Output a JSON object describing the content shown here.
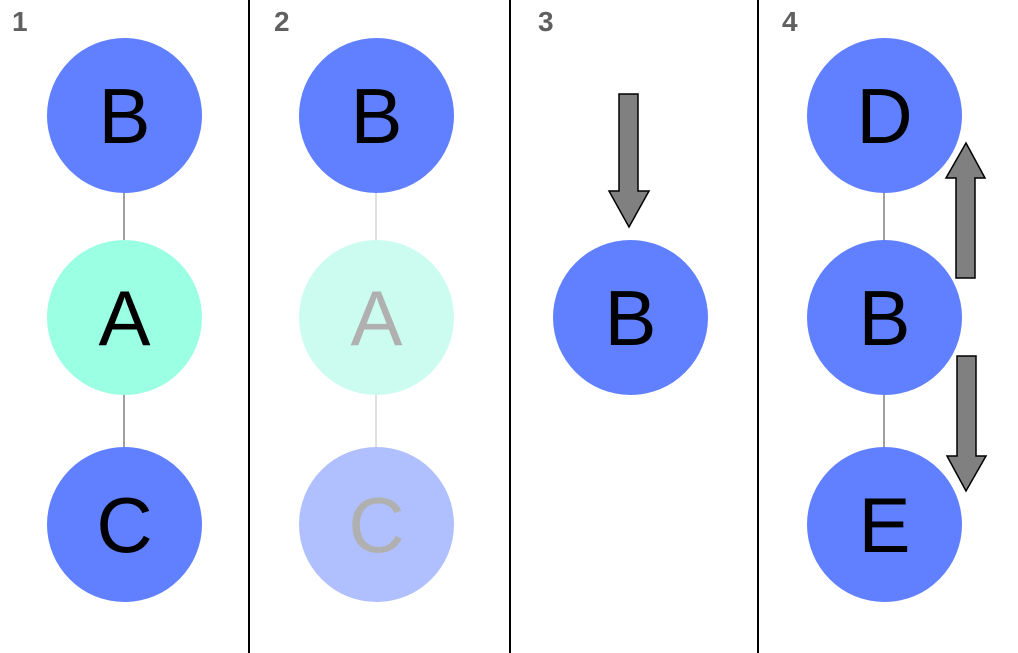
{
  "colors": {
    "blue": "#6080FF",
    "teal": "#9BFFE3",
    "blue_faded": "#B0C0FF",
    "teal_faded": "#CCFCF0",
    "text": "#000000",
    "text_faded": "#B0B0B0",
    "edge": "#A0A0A0",
    "edge_faded": "#E0E0E0",
    "arrow_fill": "#808080",
    "divider": "#000000"
  },
  "panels": [
    {
      "label": "1",
      "nodes": [
        {
          "label": "B",
          "color": "blue"
        },
        {
          "label": "A",
          "color": "teal"
        },
        {
          "label": "C",
          "color": "blue"
        }
      ]
    },
    {
      "label": "2",
      "nodes": [
        {
          "label": "B",
          "color": "blue"
        },
        {
          "label": "A",
          "color": "teal_faded",
          "faded": true
        },
        {
          "label": "C",
          "color": "blue_faded",
          "faded": true
        }
      ]
    },
    {
      "label": "3",
      "nodes": [
        {
          "label": "B",
          "color": "blue"
        }
      ],
      "arrow": "down"
    },
    {
      "label": "4",
      "nodes": [
        {
          "label": "D",
          "color": "blue"
        },
        {
          "label": "B",
          "color": "blue"
        },
        {
          "label": "E",
          "color": "blue"
        }
      ],
      "arrows": [
        "up",
        "down"
      ]
    }
  ]
}
